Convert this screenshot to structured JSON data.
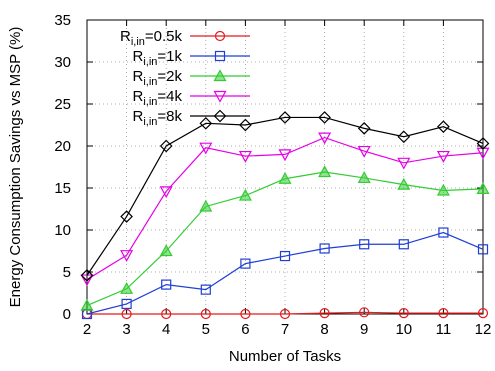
{
  "chart_data": {
    "type": "line",
    "title": "",
    "xlabel": "Number of Tasks",
    "ylabel": "Energy Consumption Savings vs MSP (%)",
    "x": [
      2,
      3,
      4,
      5,
      6,
      7,
      8,
      9,
      10,
      11,
      12
    ],
    "xlim": [
      2,
      12
    ],
    "ylim": [
      0,
      35
    ],
    "xticks": [
      2,
      3,
      4,
      5,
      6,
      7,
      8,
      9,
      10,
      11,
      12
    ],
    "yticks": [
      0,
      5,
      10,
      15,
      20,
      25,
      30,
      35
    ],
    "grid": true,
    "legend_position": "top-left",
    "series": [
      {
        "name_main": "R",
        "name_sub": "i,in",
        "name_suffix": "=0.5k",
        "color": "#e41a1c",
        "marker": "circle",
        "values": [
          0,
          0,
          0,
          0,
          0,
          0,
          0.1,
          0.2,
          0.1,
          0.1,
          0.1
        ]
      },
      {
        "name_main": "R",
        "name_sub": "i,in",
        "name_suffix": "=1k",
        "color": "#1f3fd6",
        "marker": "square",
        "values": [
          0,
          1.2,
          3.5,
          2.9,
          6,
          6.9,
          7.8,
          8.3,
          8.3,
          9.7,
          7.7
        ]
      },
      {
        "name_main": "R",
        "name_sub": "i,in",
        "name_suffix": "=2k",
        "color": "#33cc33",
        "marker": "triangle-up",
        "values": [
          1,
          3,
          7.5,
          12.8,
          14.1,
          16.1,
          16.9,
          16.2,
          15.4,
          14.7,
          14.9
        ]
      },
      {
        "name_main": "R",
        "name_sub": "i,in",
        "name_suffix": "=4k",
        "color": "#e600e6",
        "marker": "triangle-down",
        "values": [
          4.1,
          7,
          14.6,
          19.8,
          18.8,
          19,
          21,
          19.4,
          18,
          18.8,
          19.2
        ]
      },
      {
        "name_main": "R",
        "name_sub": "i,in",
        "name_suffix": "=8k",
        "color": "#000000",
        "marker": "diamond",
        "values": [
          4.6,
          11.6,
          20,
          22.7,
          22.5,
          23.4,
          23.4,
          22.1,
          21.1,
          22.3,
          20.3
        ]
      }
    ]
  }
}
